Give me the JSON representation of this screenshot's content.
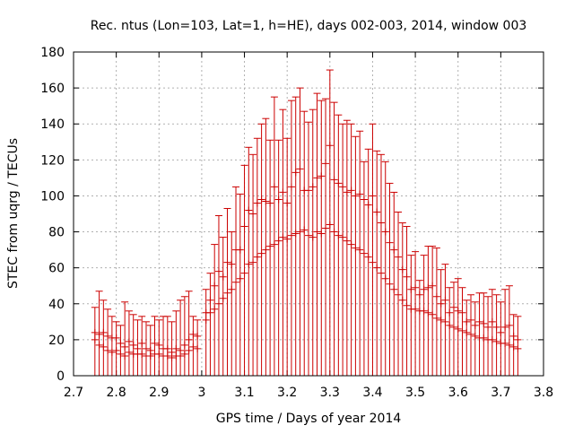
{
  "chart_data": {
    "type": "errorbar",
    "title": "Rec. ntus (Lon=103, Lat=1, h=HE), days 002-003, 2014, window 003",
    "xlabel": "GPS time / Days of year 2014",
    "ylabel": "STEC from uqrg / TECUs",
    "xlim": [
      2.7,
      3.8
    ],
    "ylim": [
      0,
      180
    ],
    "x_ticks": [
      "2.7",
      "2.8",
      "2.9",
      "3",
      "3.1",
      "3.2",
      "3.3",
      "3.4",
      "3.5",
      "3.6",
      "3.7",
      "3.8"
    ],
    "y_ticks": [
      "0",
      "20",
      "40",
      "60",
      "80",
      "100",
      "120",
      "140",
      "160",
      "180"
    ],
    "grid": true,
    "legend": "none",
    "series_color": "#cc0000",
    "error_bar_lower": 0,
    "x": [
      2.75,
      2.76,
      2.77,
      2.78,
      2.79,
      2.8,
      2.81,
      2.82,
      2.83,
      2.84,
      2.85,
      2.86,
      2.87,
      2.88,
      2.89,
      2.9,
      2.91,
      2.92,
      2.93,
      2.94,
      2.95,
      2.96,
      2.97,
      2.98,
      2.99,
      3.01,
      3.02,
      3.03,
      3.04,
      3.05,
      3.06,
      3.07,
      3.08,
      3.09,
      3.1,
      3.11,
      3.12,
      3.13,
      3.14,
      3.15,
      3.16,
      3.17,
      3.18,
      3.19,
      3.2,
      3.21,
      3.22,
      3.23,
      3.24,
      3.25,
      3.26,
      3.27,
      3.28,
      3.29,
      3.3,
      3.31,
      3.32,
      3.33,
      3.34,
      3.35,
      3.36,
      3.37,
      3.38,
      3.39,
      3.4,
      3.41,
      3.42,
      3.43,
      3.44,
      3.45,
      3.46,
      3.47,
      3.48,
      3.49,
      3.5,
      3.51,
      3.52,
      3.53,
      3.54,
      3.55,
      3.56,
      3.57,
      3.58,
      3.59,
      3.6,
      3.61,
      3.62,
      3.63,
      3.64,
      3.65,
      3.66,
      3.67,
      3.68,
      3.69,
      3.7,
      3.71,
      3.72,
      3.73,
      3.74
    ],
    "y_upper": [
      38,
      47,
      42,
      37,
      33,
      30,
      28,
      41,
      36,
      34,
      31,
      33,
      30,
      28,
      33,
      31,
      33,
      33,
      30,
      36,
      42,
      44,
      47,
      33,
      31,
      48,
      57,
      73,
      89,
      77,
      93,
      80,
      105,
      101,
      117,
      127,
      123,
      132,
      140,
      143,
      131,
      155,
      131,
      148,
      132,
      153,
      155,
      160,
      147,
      141,
      148,
      157,
      153,
      154,
      170,
      152,
      145,
      140,
      142,
      140,
      133,
      136,
      119,
      126,
      140,
      125,
      123,
      119,
      107,
      102,
      91,
      85,
      83,
      67,
      69,
      53,
      67,
      72,
      72,
      71,
      59,
      62,
      49,
      52,
      54,
      49,
      42,
      45,
      41,
      46,
      46,
      44,
      48,
      45,
      41,
      48,
      50,
      34,
      33
    ],
    "y_points": [
      24,
      23,
      24,
      22,
      21,
      21,
      18,
      16,
      19,
      17,
      15,
      18,
      15,
      14,
      18,
      17,
      15,
      15,
      13,
      15,
      14,
      17,
      20,
      23,
      22,
      35,
      42,
      50,
      58,
      55,
      63,
      62,
      70,
      70,
      83,
      92,
      90,
      96,
      98,
      97,
      96,
      105,
      98,
      102,
      96,
      105,
      113,
      115,
      103,
      103,
      105,
      110,
      111,
      118,
      128,
      109,
      107,
      105,
      102,
      103,
      100,
      101,
      98,
      95,
      100,
      91,
      85,
      80,
      74,
      70,
      66,
      59,
      55,
      48,
      49,
      45,
      48,
      49,
      50,
      44,
      40,
      42,
      35,
      38,
      36,
      35,
      30,
      31,
      28,
      30,
      29,
      27,
      30,
      27,
      24,
      27,
      28,
      22,
      20
    ],
    "y_lower_marks": [
      20,
      17,
      16,
      14,
      13,
      14,
      12,
      11,
      13,
      12,
      12,
      12,
      11,
      11,
      12,
      12,
      11,
      11,
      10,
      11,
      11,
      12,
      14,
      16,
      15,
      31,
      35,
      37,
      40,
      43,
      46,
      48,
      52,
      54,
      57,
      62,
      63,
      66,
      68,
      70,
      72,
      73,
      75,
      77,
      76,
      78,
      79,
      80,
      81,
      78,
      77,
      80,
      79,
      82,
      84,
      80,
      78,
      77,
      75,
      73,
      71,
      70,
      68,
      66,
      63,
      60,
      57,
      54,
      51,
      48,
      45,
      42,
      39,
      37,
      37,
      36,
      36,
      35,
      34,
      32,
      31,
      30,
      28,
      27,
      26,
      25,
      24,
      23,
      22,
      21,
      21,
      20,
      20,
      19,
      18,
      18,
      17,
      16,
      15
    ]
  }
}
